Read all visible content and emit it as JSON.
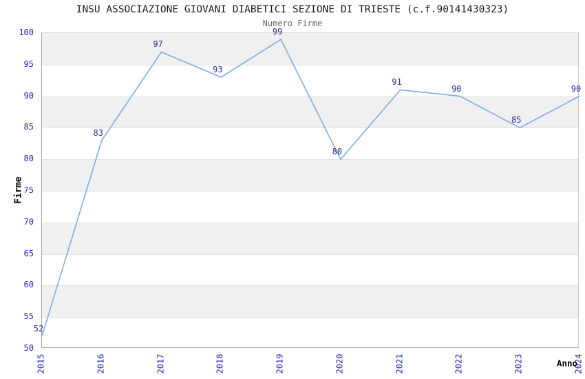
{
  "chart_data": {
    "type": "line",
    "title": "INSU ASSOCIAZIONE GIOVANI DIABETICI SEZIONE DI TRIESTE (c.f.90141430323)",
    "subtitle": "Numero Firme",
    "xlabel": "Anno",
    "ylabel": "Firme",
    "categories": [
      "2015",
      "2016",
      "2017",
      "2018",
      "2019",
      "2020",
      "2021",
      "2022",
      "2023",
      "2024"
    ],
    "values": [
      52,
      83,
      97,
      93,
      99,
      80,
      91,
      90,
      85,
      90
    ],
    "ylim": [
      50,
      100
    ],
    "ytick_step": 5,
    "grid": "alternating horizontal bands",
    "legend_position": "none",
    "colors": {
      "line": "#79ADE5",
      "band": "#F0F0F0",
      "gridline": "#E2E2E2",
      "tick_label": "#2424CC",
      "data_label": "#2E2E96",
      "title": "#1A1A1A",
      "subtitle": "#666666"
    }
  }
}
